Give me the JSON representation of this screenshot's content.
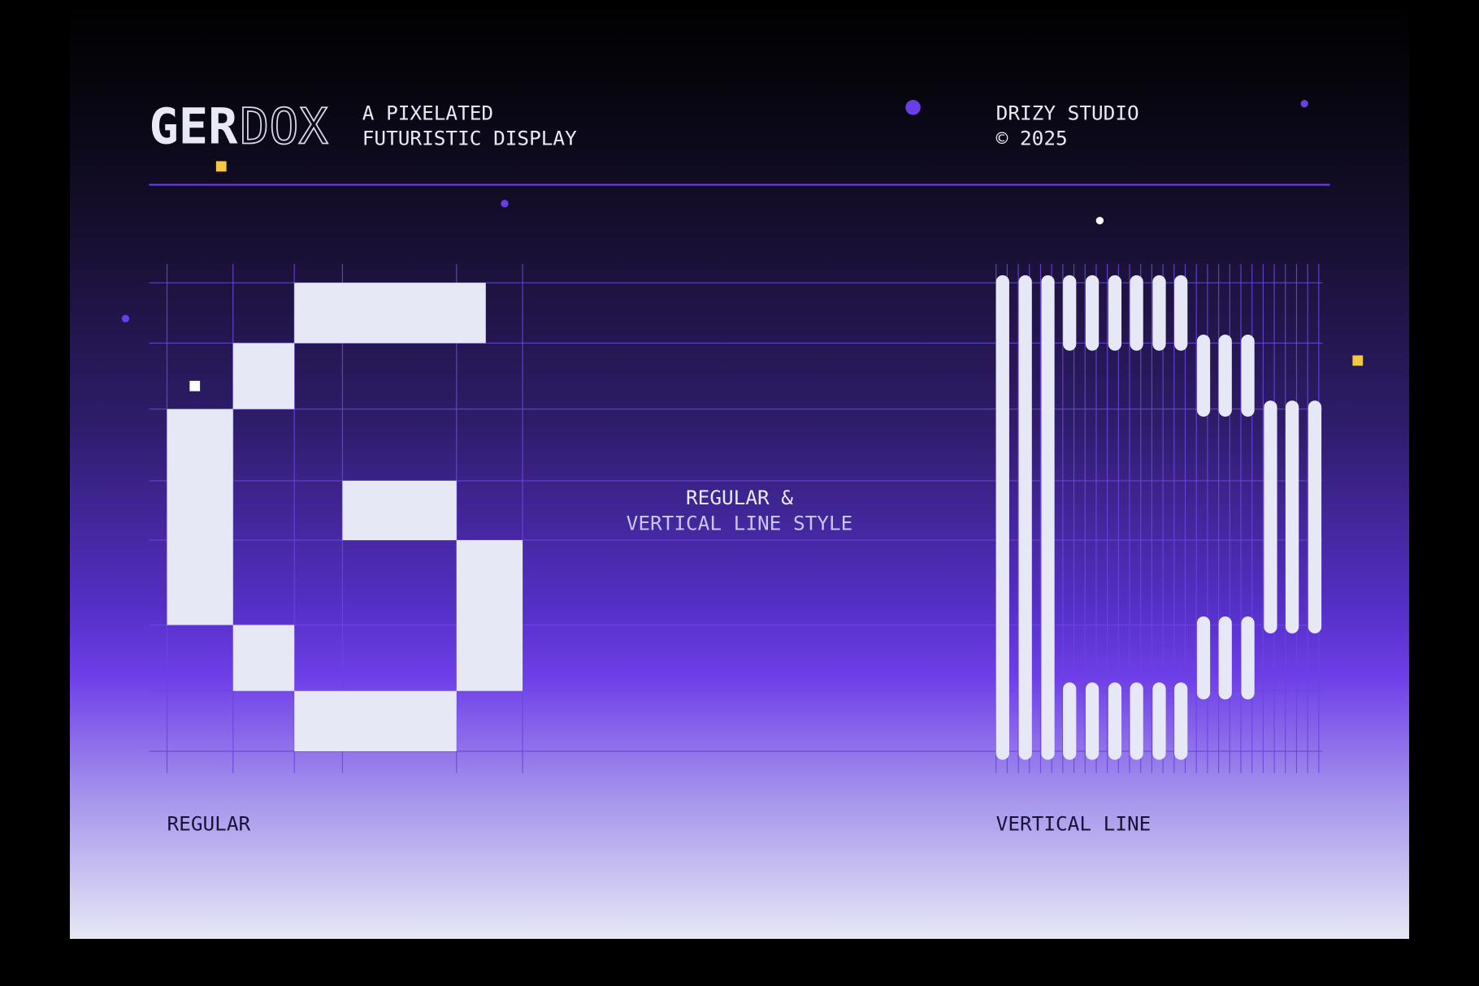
{
  "header": {
    "logo": [
      "GER",
      "DOX"
    ],
    "tagline": [
      "A PIXELATED",
      "FUTURISTIC DISPLAY"
    ],
    "studio": [
      "DRIZY STUDIO",
      "© 2025"
    ]
  },
  "center_label": [
    "REGULAR &",
    "VERTICAL LINE STYLE"
  ],
  "styles": [
    "REGULAR",
    "VERTICAL LINE"
  ]
}
